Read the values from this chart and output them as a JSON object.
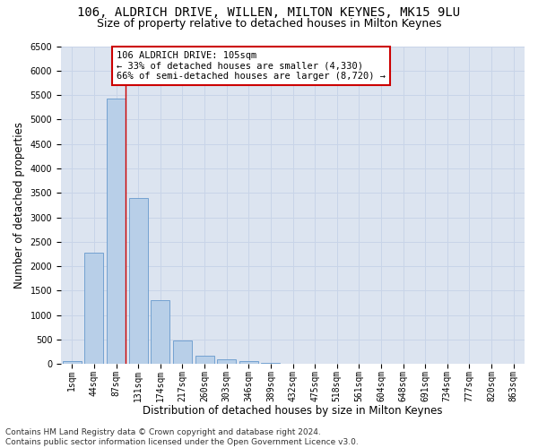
{
  "title": "106, ALDRICH DRIVE, WILLEN, MILTON KEYNES, MK15 9LU",
  "subtitle": "Size of property relative to detached houses in Milton Keynes",
  "xlabel": "Distribution of detached houses by size in Milton Keynes",
  "ylabel": "Number of detached properties",
  "footer_line1": "Contains HM Land Registry data © Crown copyright and database right 2024.",
  "footer_line2": "Contains public sector information licensed under the Open Government Licence v3.0.",
  "categories": [
    "1sqm",
    "44sqm",
    "87sqm",
    "131sqm",
    "174sqm",
    "217sqm",
    "260sqm",
    "303sqm",
    "346sqm",
    "389sqm",
    "432sqm",
    "475sqm",
    "518sqm",
    "561sqm",
    "604sqm",
    "648sqm",
    "691sqm",
    "734sqm",
    "777sqm",
    "820sqm",
    "863sqm"
  ],
  "values": [
    70,
    2270,
    5430,
    3390,
    1310,
    475,
    175,
    90,
    55,
    30,
    15,
    10,
    5,
    3,
    2,
    1,
    1,
    0,
    0,
    0,
    0
  ],
  "bar_color": "#b8cfe8",
  "bar_edge_color": "#6699cc",
  "annotation_box_text": "106 ALDRICH DRIVE: 105sqm\n← 33% of detached houses are smaller (4,330)\n66% of semi-detached houses are larger (8,720) →",
  "annotation_box_color": "#ffffff",
  "annotation_box_edge_color": "#cc0000",
  "vline_color": "#cc0000",
  "vline_x": 2.43,
  "ylim": [
    0,
    6500
  ],
  "yticks": [
    0,
    500,
    1000,
    1500,
    2000,
    2500,
    3000,
    3500,
    4000,
    4500,
    5000,
    5500,
    6000,
    6500
  ],
  "grid_color": "#c8d4e8",
  "background_color": "#dce4f0",
  "title_fontsize": 10,
  "subtitle_fontsize": 9,
  "axis_label_fontsize": 8.5,
  "tick_fontsize": 7,
  "annotation_fontsize": 7.5,
  "footer_fontsize": 6.5
}
